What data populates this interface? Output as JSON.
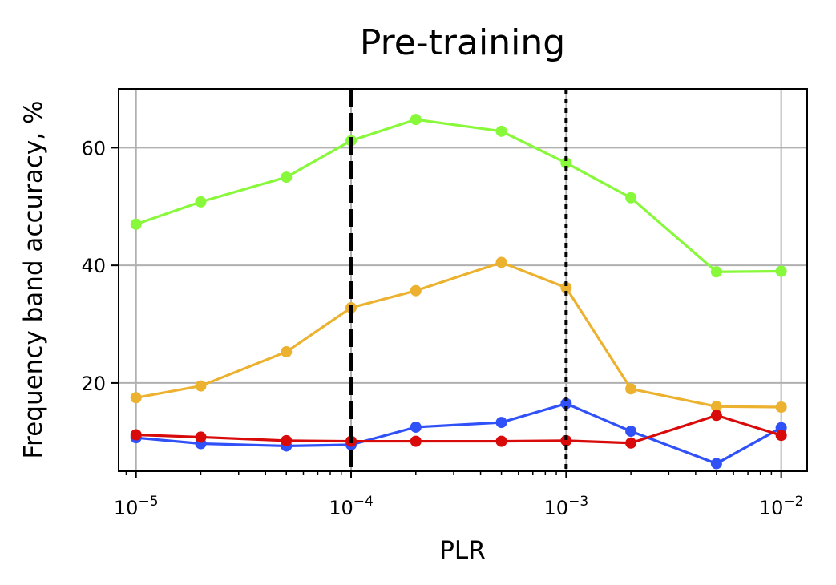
{
  "chart_data": {
    "type": "line",
    "title": "Pre-training",
    "xlabel": "PLR",
    "ylabel": "Frequency band accuracy, %",
    "xscale": "log",
    "xlim": [
      8.3e-06,
      0.0132
    ],
    "ylim": [
      5,
      70
    ],
    "grid": true,
    "x_ticks": [
      {
        "base": "10",
        "exp": "−5",
        "value": 1e-05
      },
      {
        "base": "10",
        "exp": "−4",
        "value": 0.0001
      },
      {
        "base": "10",
        "exp": "−3",
        "value": 0.001
      },
      {
        "base": "10",
        "exp": "−2",
        "value": 0.01
      }
    ],
    "y_ticks": [
      {
        "label": "20",
        "value": 20
      },
      {
        "label": "40",
        "value": 40
      },
      {
        "label": "60",
        "value": 60
      }
    ],
    "x": [
      1e-05,
      2e-05,
      5e-05,
      0.0001,
      0.0002,
      0.0005,
      0.001,
      0.002,
      0.005,
      0.01
    ],
    "series": [
      {
        "color": "#88f83a",
        "values": [
          47.0,
          50.8,
          55.0,
          61.2,
          64.8,
          62.8,
          57.4,
          51.5,
          38.9,
          39.0
        ]
      },
      {
        "color": "#ecb22f",
        "values": [
          17.5,
          19.5,
          25.3,
          32.8,
          35.7,
          40.5,
          36.2,
          19.0,
          16.0,
          15.9
        ]
      },
      {
        "color": "#3050f8",
        "values": [
          10.7,
          9.7,
          9.3,
          9.5,
          12.5,
          13.3,
          16.5,
          11.8,
          6.3,
          12.4
        ]
      },
      {
        "color": "#d80a0a",
        "values": [
          11.2,
          10.8,
          10.2,
          10.1,
          10.1,
          10.1,
          10.2,
          9.8,
          14.5,
          11.1
        ]
      }
    ],
    "reference_lines": [
      {
        "x": 0.0001,
        "style": "dashed",
        "color": "#000000"
      },
      {
        "x": 0.001,
        "style": "dotted",
        "color": "#000000"
      }
    ]
  }
}
